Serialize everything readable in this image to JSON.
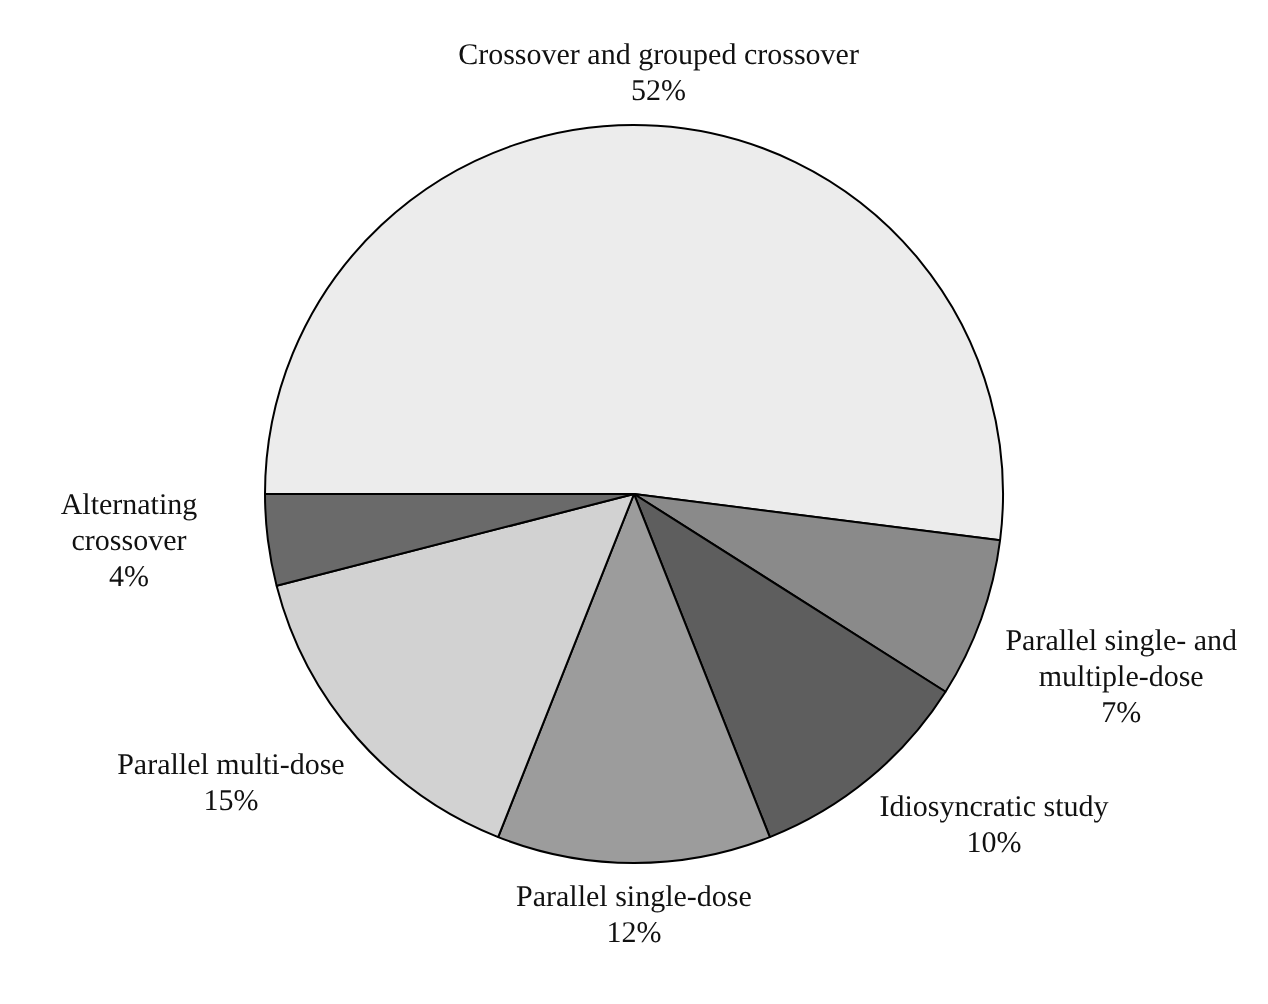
{
  "chart_data": {
    "type": "pie",
    "categories": [
      "Crossover and grouped crossover",
      "Parallel single- and multiple-dose",
      "Idiosyncratic study",
      "Parallel single-dose",
      "Parallel multi-dose",
      "Alternating crossover"
    ],
    "values": [
      52,
      7,
      10,
      12,
      15,
      4
    ],
    "value_labels": [
      "52%",
      "7%",
      "10%",
      "12%",
      "15%",
      "4%"
    ],
    "colors": [
      "#ececec",
      "#8a8a8a",
      "#5e5e5e",
      "#9c9c9c",
      "#d2d2d2",
      "#6a6a6a"
    ],
    "legend": false
  }
}
